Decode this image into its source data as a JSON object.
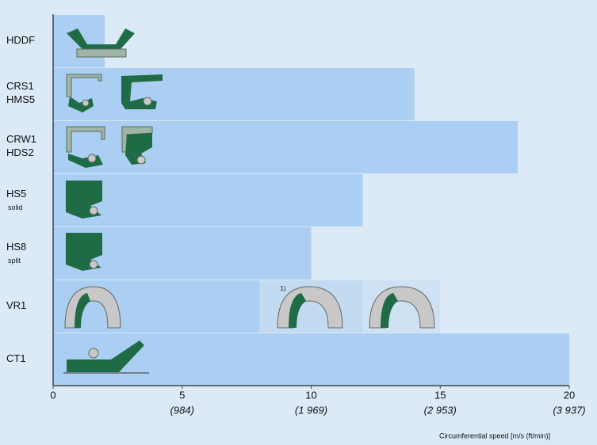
{
  "chart_data": {
    "type": "bar",
    "orientation": "horizontal",
    "stacked": true,
    "categories": [
      "HDDF",
      "CRS1",
      "CRW1",
      "HS5",
      "HS8",
      "VR1",
      "CT1"
    ],
    "category_second_lines": [
      null,
      "HMS5",
      "HDS2",
      null,
      null,
      null,
      null
    ],
    "category_notes": [
      null,
      null,
      null,
      "solid",
      "split",
      null,
      null
    ],
    "series": [
      {
        "color": "#aacff2",
        "values": [
          2,
          14,
          18,
          12,
          10,
          8,
          20
        ]
      },
      {
        "color": "#c3dbf1",
        "values": [
          null,
          null,
          null,
          null,
          null,
          4,
          null
        ]
      },
      {
        "color": "#cfe2f4",
        "values": [
          null,
          null,
          null,
          null,
          null,
          3,
          null
        ]
      }
    ],
    "annotation": "1)",
    "xlim": [
      0,
      20
    ],
    "xticks": [
      0,
      5,
      10,
      15,
      20
    ],
    "xtick_sublabels": [
      null,
      "(984)",
      "(1 969)",
      "(2 953)",
      "(3 937)"
    ],
    "xlabel": "Circumferential speed [m/s (ft/min)]"
  }
}
